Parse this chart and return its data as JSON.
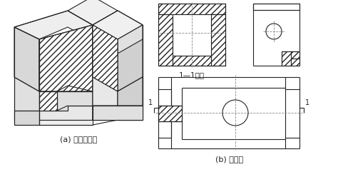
{
  "label_a": "(a) 剖面轴测图",
  "label_b": "(b) 剖面图",
  "section_label": "1—1剖面",
  "font_size_label": 8,
  "lc": "#222222",
  "lw": 0.8
}
